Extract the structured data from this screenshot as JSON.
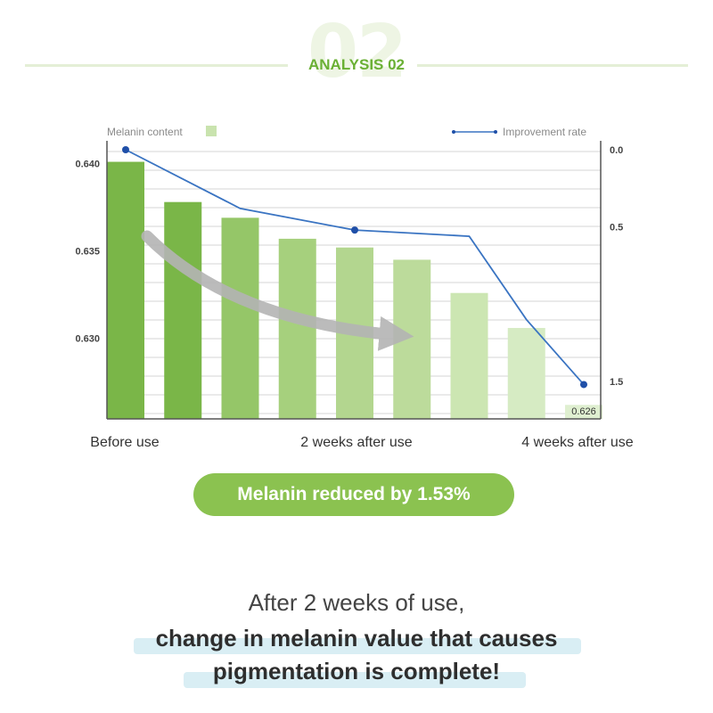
{
  "header": {
    "number": "02",
    "title": "ANALYSIS 02"
  },
  "chart_data": {
    "type": "bar",
    "title": "",
    "legend": {
      "bar_series": "Melanin content",
      "line_series": "Improvement rate"
    },
    "legend_placement": "top",
    "y_left": {
      "ticks": [
        0.63,
        0.635,
        0.64
      ],
      "tick_labels": [
        "0.630",
        "0.635",
        "0.640"
      ],
      "range": [
        0.6254,
        0.6413
      ]
    },
    "y_right": {
      "ticks": [
        0.0,
        0.5,
        1.5
      ],
      "tick_labels": [
        "0.0",
        "0.5",
        "1.5"
      ],
      "range": [
        0.0,
        1.9
      ],
      "inverted": true
    },
    "x_labels": [
      "Before use",
      "2 weeks after use",
      "4 weeks after use"
    ],
    "bar_values": [
      0.6401,
      0.6378,
      0.6369,
      0.6357,
      0.6352,
      0.6345,
      0.6326,
      0.6306,
      0.6262
    ],
    "bar_label_last": "0.626",
    "line_values": [
      0.0,
      null,
      0.38,
      null,
      0.52,
      null,
      0.56,
      1.1,
      1.52
    ],
    "line_markers_at": [
      0,
      4,
      8
    ],
    "grid": true,
    "colors": {
      "bars": [
        "#7ab648",
        "#7ab648",
        "#95c668",
        "#a6d07d",
        "#b3d68f",
        "#bcdb9b",
        "#cce6b2",
        "#d6ebc3",
        "#dfefd0"
      ],
      "legend_swatch": "#c9e3ae",
      "line": "#3a74c2",
      "marker": "#1f4fa8",
      "arrow": "#b4b4b4"
    }
  },
  "summary_badge": "Melanin reduced by 1.53%",
  "caption": {
    "line1": "After 2 weeks of use,",
    "line2": "change in melanin value that causes",
    "line3": "pigmentation is complete!"
  }
}
